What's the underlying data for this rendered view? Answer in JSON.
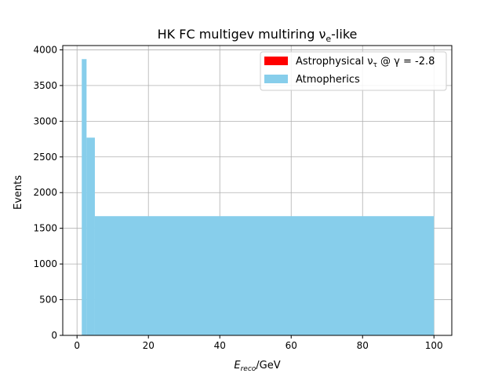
{
  "chart_data": {
    "type": "bar",
    "title": "HK FC multigev multiring ν",
    "title_sub": "e",
    "title_suffix": "-like",
    "xlabel": "E",
    "xlabel_sub": "reco",
    "xlabel_suffix": "/GeV",
    "ylabel": "Events",
    "xlim": [
      -4.0,
      105.0
    ],
    "ylim": [
      0,
      4060
    ],
    "xticks": [
      0,
      20,
      40,
      60,
      80,
      100
    ],
    "yticks": [
      0,
      500,
      1000,
      1500,
      2000,
      2500,
      3000,
      3500,
      4000
    ],
    "grid": true,
    "legend_placement": "top-right",
    "series": [
      {
        "name": "Astrophysical ν",
        "name_sub": "τ",
        "name_suffix": " @ γ = -2.8",
        "color": "#ff0000",
        "bins": []
      },
      {
        "name": "Atmopherics",
        "color": "#87ceeb",
        "bins": [
          {
            "x0": 1.33,
            "x1": 2.67,
            "value": 3870
          },
          {
            "x0": 2.67,
            "x1": 5.0,
            "value": 2770
          },
          {
            "x0": 5.0,
            "x1": 100.0,
            "value": 1670
          }
        ]
      }
    ]
  }
}
